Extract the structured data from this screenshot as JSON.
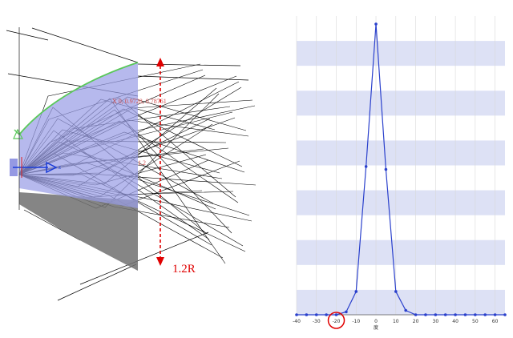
{
  "left_view": {
    "colors": {
      "reflector_fill": "#9a9ee6",
      "reflector_edge": "#5ac85a",
      "shadow_fill": "#707070",
      "rays": "#000000",
      "dimension": "#e00000",
      "axis": "#1a3cd8"
    },
    "z_label": "z",
    "coord_label": "X 0, 0.9728, 0.78761",
    "center_label": "1.2",
    "dimension_label": "1.2R"
  },
  "right_chart": {
    "colors": {
      "line": "#2a40cc",
      "band": "#dde1f5",
      "grid": "#d8d8d8",
      "highlight": "#e00000"
    },
    "x_unit_label": "度",
    "highlighted_tick": "-20"
  },
  "chart_data": {
    "type": "line",
    "title": "",
    "xlabel": "度",
    "ylabel": "",
    "xlim": [
      -40,
      65
    ],
    "ylim": [
      0,
      1
    ],
    "x_ticks": [
      "-40",
      "-30",
      "-20",
      "-10",
      "0",
      "10",
      "20",
      "30",
      "40",
      "50",
      "60"
    ],
    "grid": true,
    "series": [
      {
        "x": [
          -40,
          -35,
          -30,
          -25,
          -20,
          -15,
          -10,
          -5,
          0,
          5,
          10,
          15,
          20,
          25,
          30,
          35,
          40,
          45,
          50,
          55,
          60,
          65
        ],
        "values": [
          0,
          0,
          0,
          0,
          0,
          0.01,
          0.08,
          0.51,
          1.0,
          0.5,
          0.08,
          0.015,
          0,
          0,
          0,
          0,
          0,
          0,
          0,
          0,
          0,
          0
        ]
      }
    ]
  }
}
